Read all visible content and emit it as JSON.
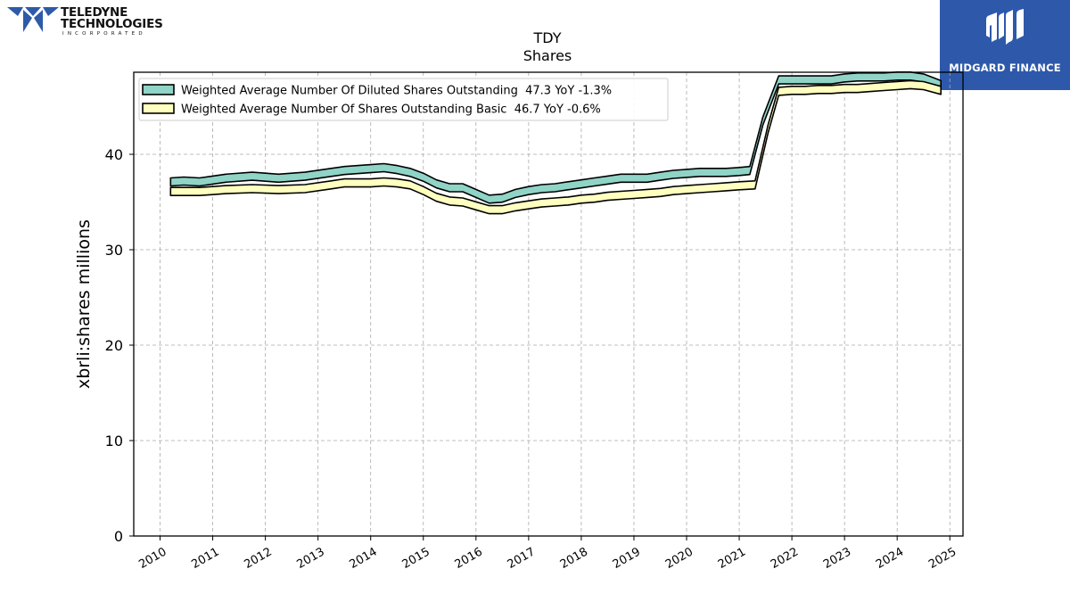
{
  "logos": {
    "left": {
      "line1": "TELEDYNE",
      "line2": "TECHNOLOGIES",
      "line3": "INCORPORATED"
    },
    "right": {
      "brand": "MIDGARD FINANCE"
    }
  },
  "chart_data": {
    "type": "line",
    "title": "TDY",
    "subtitle": "Shares",
    "ylabel": "xbrli:shares millions",
    "xlabel": "",
    "xlim": [
      2009.5,
      2025.25
    ],
    "ylim": [
      0,
      48.6
    ],
    "yticks": [
      0,
      10,
      20,
      30,
      40
    ],
    "xticks": [
      "2010",
      "2011",
      "2012",
      "2013",
      "2014",
      "2015",
      "2016",
      "2017",
      "2018",
      "2019",
      "2020",
      "2021",
      "2022",
      "2023",
      "2024",
      "2025"
    ],
    "grid": true,
    "legend_position": "top-left",
    "series": [
      {
        "name": "Weighted Average Number Of Diluted Shares Outstanding  47.3 YoY -1.3%",
        "color": "#8fd4c6",
        "points": [
          [
            2010.2,
            37.1
          ],
          [
            2010.45,
            37.2
          ],
          [
            2010.75,
            37.1
          ],
          [
            2011.0,
            37.3
          ],
          [
            2011.25,
            37.5
          ],
          [
            2011.75,
            37.7
          ],
          [
            2012.25,
            37.5
          ],
          [
            2012.75,
            37.7
          ],
          [
            2013.25,
            38.1
          ],
          [
            2013.5,
            38.3
          ],
          [
            2014.0,
            38.5
          ],
          [
            2014.25,
            38.6
          ],
          [
            2014.5,
            38.4
          ],
          [
            2014.75,
            38.1
          ],
          [
            2015.0,
            37.6
          ],
          [
            2015.25,
            36.9
          ],
          [
            2015.5,
            36.5
          ],
          [
            2015.75,
            36.5
          ],
          [
            2016.0,
            35.9
          ],
          [
            2016.25,
            35.3
          ],
          [
            2016.5,
            35.4
          ],
          [
            2016.75,
            35.9
          ],
          [
            2017.0,
            36.2
          ],
          [
            2017.25,
            36.4
          ],
          [
            2017.5,
            36.5
          ],
          [
            2017.75,
            36.7
          ],
          [
            2018.0,
            36.9
          ],
          [
            2018.25,
            37.1
          ],
          [
            2018.5,
            37.3
          ],
          [
            2018.75,
            37.5
          ],
          [
            2019.0,
            37.5
          ],
          [
            2019.25,
            37.5
          ],
          [
            2019.5,
            37.7
          ],
          [
            2019.75,
            37.9
          ],
          [
            2020.0,
            38.0
          ],
          [
            2020.25,
            38.1
          ],
          [
            2020.5,
            38.1
          ],
          [
            2020.75,
            38.1
          ],
          [
            2021.0,
            38.2
          ],
          [
            2021.2,
            38.3
          ],
          [
            2021.45,
            43.5
          ],
          [
            2021.75,
            47.8
          ],
          [
            2022.0,
            47.8
          ],
          [
            2022.25,
            47.8
          ],
          [
            2022.5,
            47.8
          ],
          [
            2022.75,
            47.8
          ],
          [
            2023.0,
            48.0
          ],
          [
            2023.25,
            48.1
          ],
          [
            2023.5,
            48.1
          ],
          [
            2023.75,
            48.1
          ],
          [
            2024.0,
            48.2
          ],
          [
            2024.25,
            48.2
          ],
          [
            2024.5,
            48.0
          ],
          [
            2024.83,
            47.3
          ]
        ]
      },
      {
        "name": "Weighted Average Number Of Shares Outstanding Basic  46.7 YoY -0.6%",
        "color": "#ffffc0",
        "points": [
          [
            2010.2,
            36.1
          ],
          [
            2010.45,
            36.1
          ],
          [
            2010.75,
            36.1
          ],
          [
            2011.0,
            36.2
          ],
          [
            2011.25,
            36.3
          ],
          [
            2011.75,
            36.4
          ],
          [
            2012.25,
            36.3
          ],
          [
            2012.75,
            36.4
          ],
          [
            2013.25,
            36.8
          ],
          [
            2013.5,
            37.0
          ],
          [
            2014.0,
            37.0
          ],
          [
            2014.25,
            37.1
          ],
          [
            2014.5,
            37.0
          ],
          [
            2014.75,
            36.8
          ],
          [
            2015.0,
            36.2
          ],
          [
            2015.25,
            35.5
          ],
          [
            2015.5,
            35.1
          ],
          [
            2015.75,
            35.0
          ],
          [
            2016.0,
            34.6
          ],
          [
            2016.25,
            34.2
          ],
          [
            2016.5,
            34.2
          ],
          [
            2016.75,
            34.5
          ],
          [
            2017.0,
            34.7
          ],
          [
            2017.25,
            34.9
          ],
          [
            2017.5,
            35.0
          ],
          [
            2017.75,
            35.1
          ],
          [
            2018.0,
            35.3
          ],
          [
            2018.25,
            35.4
          ],
          [
            2018.5,
            35.6
          ],
          [
            2018.75,
            35.7
          ],
          [
            2019.0,
            35.8
          ],
          [
            2019.25,
            35.9
          ],
          [
            2019.5,
            36.0
          ],
          [
            2019.75,
            36.2
          ],
          [
            2020.0,
            36.3
          ],
          [
            2020.25,
            36.4
          ],
          [
            2020.5,
            36.5
          ],
          [
            2020.75,
            36.6
          ],
          [
            2021.0,
            36.7
          ],
          [
            2021.3,
            36.8
          ],
          [
            2021.55,
            42.7
          ],
          [
            2021.75,
            46.6
          ],
          [
            2022.0,
            46.7
          ],
          [
            2022.25,
            46.7
          ],
          [
            2022.5,
            46.8
          ],
          [
            2022.75,
            46.8
          ],
          [
            2023.0,
            46.9
          ],
          [
            2023.25,
            46.9
          ],
          [
            2023.5,
            47.0
          ],
          [
            2023.75,
            47.1
          ],
          [
            2024.0,
            47.2
          ],
          [
            2024.25,
            47.3
          ],
          [
            2024.5,
            47.2
          ],
          [
            2024.83,
            46.7
          ]
        ]
      }
    ]
  }
}
